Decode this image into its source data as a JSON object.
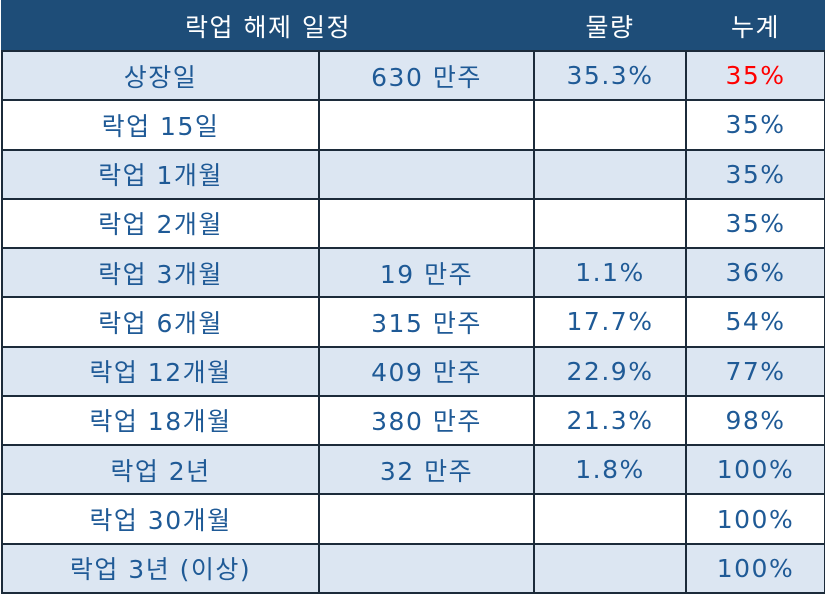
{
  "header": {
    "title": "락업 해제 일정",
    "volume": "물량",
    "cumulative": "누계"
  },
  "rows": [
    {
      "label": "상장일",
      "amount": "630 만주",
      "share": "35.3%",
      "cumulative": "35%"
    },
    {
      "label": "락업 15일",
      "cumulative": "35%"
    },
    {
      "label": "락업 1개월",
      "cumulative": "35%"
    },
    {
      "label": "락업 2개월",
      "cumulative": "35%"
    },
    {
      "label": "락업 3개월",
      "amount": "19 만주",
      "share": "1.1%",
      "cumulative": "36%"
    },
    {
      "label": "락업 6개월",
      "amount": "315 만주",
      "share": "17.7%",
      "cumulative": "54%"
    },
    {
      "label": "락업 12개월",
      "amount": "409 만주",
      "share": "22.9%",
      "cumulative": "77%"
    },
    {
      "label": "락업 18개월",
      "amount": "380 만주",
      "share": "21.3%",
      "cumulative": "98%"
    },
    {
      "label": "락업 2년",
      "amount": "32 만주",
      "share": "1.8%",
      "cumulative": "100%"
    },
    {
      "label": "락업 30개월",
      "cumulative": "100%"
    },
    {
      "label": "락업 3년 (이상)",
      "cumulative": "100%"
    }
  ]
}
